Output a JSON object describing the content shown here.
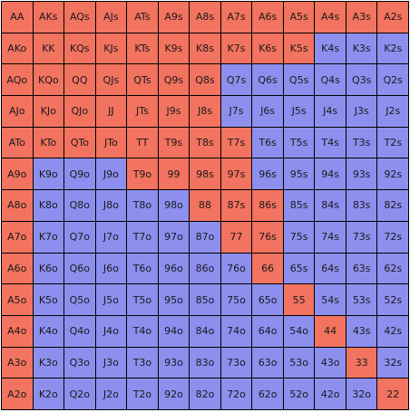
{
  "colors": {
    "raise": "#f2735f",
    "fold": "#8d8fef"
  },
  "rows": [
    [
      {
        "t": "AA",
        "r": 1
      },
      {
        "t": "AKs",
        "r": 1
      },
      {
        "t": "AQs",
        "r": 1
      },
      {
        "t": "AJs",
        "r": 1
      },
      {
        "t": "ATs",
        "r": 1
      },
      {
        "t": "A9s",
        "r": 1
      },
      {
        "t": "A8s",
        "r": 1
      },
      {
        "t": "A7s",
        "r": 1
      },
      {
        "t": "A6s",
        "r": 1
      },
      {
        "t": "A5s",
        "r": 1
      },
      {
        "t": "A4s",
        "r": 1
      },
      {
        "t": "A3s",
        "r": 1
      },
      {
        "t": "A2s",
        "r": 1
      }
    ],
    [
      {
        "t": "AKo",
        "r": 1
      },
      {
        "t": "KK",
        "r": 1
      },
      {
        "t": "KQs",
        "r": 1
      },
      {
        "t": "KJs",
        "r": 1
      },
      {
        "t": "KTs",
        "r": 1
      },
      {
        "t": "K9s",
        "r": 1
      },
      {
        "t": "K8s",
        "r": 1
      },
      {
        "t": "K7s",
        "r": 1
      },
      {
        "t": "K6s",
        "r": 1
      },
      {
        "t": "K5s",
        "r": 1
      },
      {
        "t": "K4s",
        "r": 0
      },
      {
        "t": "K3s",
        "r": 0
      },
      {
        "t": "K2s",
        "r": 0
      }
    ],
    [
      {
        "t": "AQo",
        "r": 1
      },
      {
        "t": "KQo",
        "r": 1
      },
      {
        "t": "QQ",
        "r": 1
      },
      {
        "t": "QJs",
        "r": 1
      },
      {
        "t": "QTs",
        "r": 1
      },
      {
        "t": "Q9s",
        "r": 1
      },
      {
        "t": "Q8s",
        "r": 1
      },
      {
        "t": "Q7s",
        "r": 0
      },
      {
        "t": "Q6s",
        "r": 0
      },
      {
        "t": "Q5s",
        "r": 0
      },
      {
        "t": "Q4s",
        "r": 0
      },
      {
        "t": "Q3s",
        "r": 0
      },
      {
        "t": "Q2s",
        "r": 0
      }
    ],
    [
      {
        "t": "AJo",
        "r": 1
      },
      {
        "t": "KJo",
        "r": 1
      },
      {
        "t": "QJo",
        "r": 1
      },
      {
        "t": "JJ",
        "r": 1
      },
      {
        "t": "JTs",
        "r": 1
      },
      {
        "t": "J9s",
        "r": 1
      },
      {
        "t": "J8s",
        "r": 1
      },
      {
        "t": "J7s",
        "r": 0
      },
      {
        "t": "J6s",
        "r": 0
      },
      {
        "t": "J5s",
        "r": 0
      },
      {
        "t": "J4s",
        "r": 0
      },
      {
        "t": "J3s",
        "r": 0
      },
      {
        "t": "J2s",
        "r": 0
      }
    ],
    [
      {
        "t": "ATo",
        "r": 1
      },
      {
        "t": "KTo",
        "r": 1
      },
      {
        "t": "QTo",
        "r": 1
      },
      {
        "t": "JTo",
        "r": 1
      },
      {
        "t": "TT",
        "r": 1
      },
      {
        "t": "T9s",
        "r": 1
      },
      {
        "t": "T8s",
        "r": 1
      },
      {
        "t": "T7s",
        "r": 1
      },
      {
        "t": "T6s",
        "r": 0
      },
      {
        "t": "T5s",
        "r": 0
      },
      {
        "t": "T4s",
        "r": 0
      },
      {
        "t": "T3s",
        "r": 0
      },
      {
        "t": "T2s",
        "r": 0
      }
    ],
    [
      {
        "t": "A9o",
        "r": 1
      },
      {
        "t": "K9o",
        "r": 0
      },
      {
        "t": "Q9o",
        "r": 0
      },
      {
        "t": "J9o",
        "r": 0
      },
      {
        "t": "T9o",
        "r": 1
      },
      {
        "t": "99",
        "r": 1
      },
      {
        "t": "98s",
        "r": 1
      },
      {
        "t": "97s",
        "r": 1
      },
      {
        "t": "96s",
        "r": 0
      },
      {
        "t": "95s",
        "r": 0
      },
      {
        "t": "94s",
        "r": 0
      },
      {
        "t": "93s",
        "r": 0
      },
      {
        "t": "92s",
        "r": 0
      }
    ],
    [
      {
        "t": "A8o",
        "r": 1
      },
      {
        "t": "K8o",
        "r": 0
      },
      {
        "t": "Q8o",
        "r": 0
      },
      {
        "t": "J8o",
        "r": 0
      },
      {
        "t": "T8o",
        "r": 0
      },
      {
        "t": "98o",
        "r": 0
      },
      {
        "t": "88",
        "r": 1
      },
      {
        "t": "87s",
        "r": 1
      },
      {
        "t": "86s",
        "r": 1
      },
      {
        "t": "85s",
        "r": 0
      },
      {
        "t": "84s",
        "r": 0
      },
      {
        "t": "83s",
        "r": 0
      },
      {
        "t": "82s",
        "r": 0
      }
    ],
    [
      {
        "t": "A7o",
        "r": 1
      },
      {
        "t": "K7o",
        "r": 0
      },
      {
        "t": "Q7o",
        "r": 0
      },
      {
        "t": "J7o",
        "r": 0
      },
      {
        "t": "T7o",
        "r": 0
      },
      {
        "t": "97o",
        "r": 0
      },
      {
        "t": "87o",
        "r": 0
      },
      {
        "t": "77",
        "r": 1
      },
      {
        "t": "76s",
        "r": 1
      },
      {
        "t": "75s",
        "r": 0
      },
      {
        "t": "74s",
        "r": 0
      },
      {
        "t": "73s",
        "r": 0
      },
      {
        "t": "72s",
        "r": 0
      }
    ],
    [
      {
        "t": "A6o",
        "r": 1
      },
      {
        "t": "K6o",
        "r": 0
      },
      {
        "t": "Q6o",
        "r": 0
      },
      {
        "t": "J6o",
        "r": 0
      },
      {
        "t": "T6o",
        "r": 0
      },
      {
        "t": "96o",
        "r": 0
      },
      {
        "t": "86o",
        "r": 0
      },
      {
        "t": "76o",
        "r": 0
      },
      {
        "t": "66",
        "r": 1
      },
      {
        "t": "65s",
        "r": 0
      },
      {
        "t": "64s",
        "r": 0
      },
      {
        "t": "63s",
        "r": 0
      },
      {
        "t": "62s",
        "r": 0
      }
    ],
    [
      {
        "t": "A5o",
        "r": 1
      },
      {
        "t": "K5o",
        "r": 0
      },
      {
        "t": "Q5o",
        "r": 0
      },
      {
        "t": "J5o",
        "r": 0
      },
      {
        "t": "T5o",
        "r": 0
      },
      {
        "t": "95o",
        "r": 0
      },
      {
        "t": "85o",
        "r": 0
      },
      {
        "t": "75o",
        "r": 0
      },
      {
        "t": "65o",
        "r": 0
      },
      {
        "t": "55",
        "r": 1
      },
      {
        "t": "54s",
        "r": 0
      },
      {
        "t": "53s",
        "r": 0
      },
      {
        "t": "52s",
        "r": 0
      }
    ],
    [
      {
        "t": "A4o",
        "r": 1
      },
      {
        "t": "K4o",
        "r": 0
      },
      {
        "t": "Q4o",
        "r": 0
      },
      {
        "t": "J4o",
        "r": 0
      },
      {
        "t": "T4o",
        "r": 0
      },
      {
        "t": "94o",
        "r": 0
      },
      {
        "t": "84o",
        "r": 0
      },
      {
        "t": "74o",
        "r": 0
      },
      {
        "t": "64o",
        "r": 0
      },
      {
        "t": "54o",
        "r": 0
      },
      {
        "t": "44",
        "r": 1
      },
      {
        "t": "43s",
        "r": 0
      },
      {
        "t": "42s",
        "r": 0
      }
    ],
    [
      {
        "t": "A3o",
        "r": 1
      },
      {
        "t": "K3o",
        "r": 0
      },
      {
        "t": "Q3o",
        "r": 0
      },
      {
        "t": "J3o",
        "r": 0
      },
      {
        "t": "T3o",
        "r": 0
      },
      {
        "t": "93o",
        "r": 0
      },
      {
        "t": "83o",
        "r": 0
      },
      {
        "t": "73o",
        "r": 0
      },
      {
        "t": "63o",
        "r": 0
      },
      {
        "t": "53o",
        "r": 0
      },
      {
        "t": "43o",
        "r": 0
      },
      {
        "t": "33",
        "r": 1
      },
      {
        "t": "32s",
        "r": 0
      }
    ],
    [
      {
        "t": "A2o",
        "r": 1
      },
      {
        "t": "K2o",
        "r": 0
      },
      {
        "t": "Q2o",
        "r": 0
      },
      {
        "t": "J2o",
        "r": 0
      },
      {
        "t": "T2o",
        "r": 0
      },
      {
        "t": "92o",
        "r": 0
      },
      {
        "t": "82o",
        "r": 0
      },
      {
        "t": "72o",
        "r": 0
      },
      {
        "t": "62o",
        "r": 0
      },
      {
        "t": "52o",
        "r": 0
      },
      {
        "t": "42o",
        "r": 0
      },
      {
        "t": "32o",
        "r": 0
      },
      {
        "t": "22",
        "r": 1
      }
    ]
  ]
}
